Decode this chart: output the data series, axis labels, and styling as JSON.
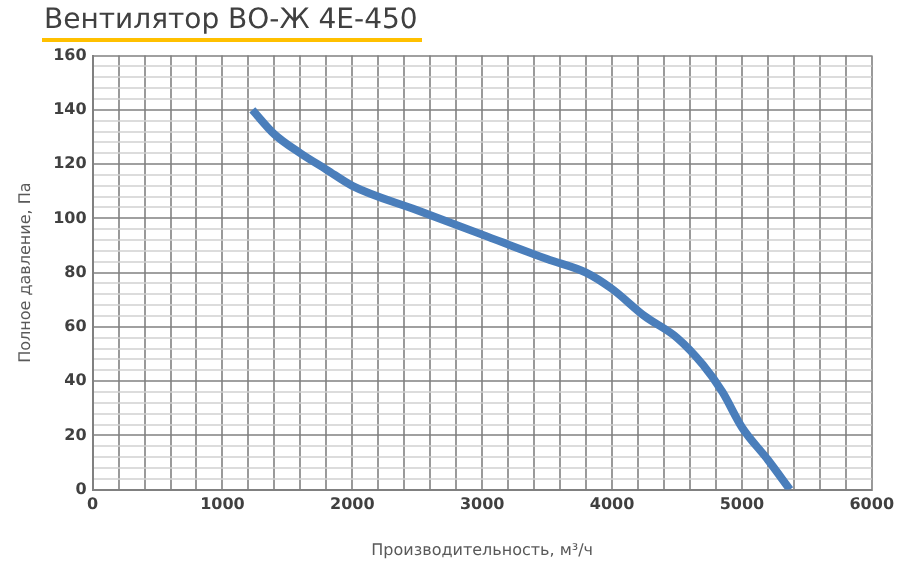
{
  "chart_data": {
    "type": "line",
    "title": "Вентилятор ВО-Ж 4Е-450",
    "xlabel": "Производительность, м³/ч",
    "ylabel": "Полное давление, Па",
    "x": [
      1230,
      1400,
      1600,
      1800,
      2000,
      2500,
      3000,
      3500,
      3800,
      4000,
      4250,
      4500,
      4700,
      4850,
      5000,
      5200,
      5370
    ],
    "series": [
      {
        "color": "#4a7ebb",
        "values": [
          140,
          131,
          124,
          118,
          112,
          103,
          94,
          85,
          80,
          74,
          64,
          56,
          46,
          36,
          23,
          11,
          0
        ]
      }
    ],
    "xlim": [
      0,
      6000
    ],
    "ylim": [
      0,
      160
    ],
    "xticks": [
      0,
      {
        "value": 200,
        "label": null
      },
      {
        "value": 400,
        "label": null
      },
      {
        "value": 600,
        "label": null
      },
      {
        "value": 800,
        "label": null
      },
      1000,
      {
        "value": 1200,
        "label": null
      },
      {
        "value": 1400,
        "label": null
      },
      {
        "value": 1600,
        "label": null
      },
      {
        "value": 1800,
        "label": null
      },
      2000,
      {
        "value": 2200,
        "label": null
      },
      {
        "value": 2400,
        "label": null
      },
      {
        "value": 2600,
        "label": null
      },
      {
        "value": 2800,
        "label": null
      },
      3000,
      {
        "value": 3200,
        "label": null
      },
      {
        "value": 3400,
        "label": null
      },
      {
        "value": 3600,
        "label": null
      },
      {
        "value": 3800,
        "label": null
      },
      4000,
      {
        "value": 4200,
        "label": null
      },
      {
        "value": 4400,
        "label": null
      },
      {
        "value": 4600,
        "label": null
      },
      {
        "value": 4800,
        "label": null
      },
      5000,
      {
        "value": 5200,
        "label": null
      },
      {
        "value": 5400,
        "label": null
      },
      {
        "value": 5600,
        "label": null
      },
      {
        "value": 5800,
        "label": null
      },
      6000
    ],
    "yticks": [
      0,
      {
        "value": 4,
        "label": null
      },
      {
        "value": 8,
        "label": null
      },
      {
        "value": 12,
        "label": null
      },
      {
        "value": 16,
        "label": null
      },
      20,
      {
        "value": 24,
        "label": null
      },
      {
        "value": 28,
        "label": null
      },
      {
        "value": 32,
        "label": null
      },
      {
        "value": 36,
        "label": null
      },
      40,
      {
        "value": 44,
        "label": null
      },
      {
        "value": 48,
        "label": null
      },
      {
        "value": 52,
        "label": null
      },
      {
        "value": 56,
        "label": null
      },
      60,
      {
        "value": 64,
        "label": null
      },
      {
        "value": 68,
        "label": null
      },
      {
        "value": 72,
        "label": null
      },
      {
        "value": 76,
        "label": null
      },
      80,
      {
        "value": 84,
        "label": null
      },
      {
        "value": 88,
        "label": null
      },
      {
        "value": 92,
        "label": null
      },
      {
        "value": 96,
        "label": null
      },
      100,
      {
        "value": 104,
        "label": null
      },
      {
        "value": 108,
        "label": null
      },
      {
        "value": 112,
        "label": null
      },
      {
        "value": 116,
        "label": null
      },
      120,
      {
        "value": 124,
        "label": null
      },
      {
        "value": 128,
        "label": null
      },
      {
        "value": 132,
        "label": null
      },
      {
        "value": 136,
        "label": null
      },
      140,
      {
        "value": 144,
        "label": null
      },
      {
        "value": 148,
        "label": null
      },
      {
        "value": 152,
        "label": null
      },
      {
        "value": 156,
        "label": null
      },
      160
    ],
    "grid": true,
    "legend": false,
    "marker": "none",
    "line_style": "solid"
  }
}
